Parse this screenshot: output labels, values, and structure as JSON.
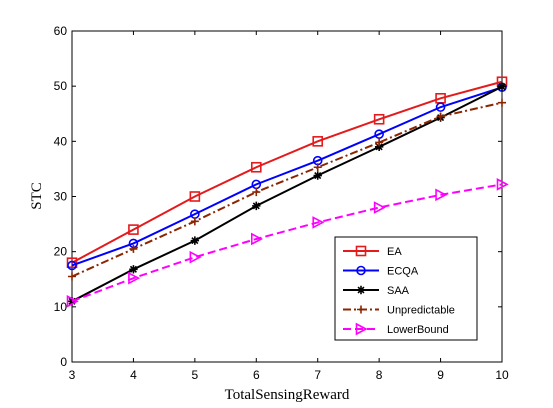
{
  "chart_data": {
    "type": "line",
    "title": "",
    "xlabel": "TotalSensingReward",
    "ylabel": "STC",
    "x": [
      3,
      4,
      5,
      6,
      7,
      8,
      9,
      10
    ],
    "xlim": [
      3,
      10
    ],
    "ylim": [
      0,
      60
    ],
    "xticks": [
      3,
      4,
      5,
      6,
      7,
      8,
      9,
      10
    ],
    "yticks": [
      0,
      10,
      20,
      30,
      40,
      50,
      60
    ],
    "grid": false,
    "legend_position": "bottom-right",
    "series": [
      {
        "name": "EA",
        "color": "#e41a1c",
        "style": "solid",
        "marker": "square",
        "values": [
          18.0,
          24.0,
          30.0,
          35.3,
          40.0,
          44.0,
          47.8,
          50.8
        ]
      },
      {
        "name": "ECQA",
        "color": "#0000ff",
        "style": "solid",
        "marker": "circle",
        "values": [
          17.5,
          21.5,
          26.8,
          32.2,
          36.5,
          41.3,
          46.2,
          49.8
        ]
      },
      {
        "name": "SAA",
        "color": "#000000",
        "style": "solid",
        "marker": "star",
        "values": [
          11.0,
          16.8,
          22.0,
          28.3,
          33.8,
          39.0,
          44.3,
          49.9
        ]
      },
      {
        "name": "Unpredictable",
        "color": "#8b2500",
        "style": "dashdot",
        "marker": "plus",
        "values": [
          15.5,
          20.5,
          25.5,
          30.8,
          35.3,
          39.8,
          44.5,
          47.0
        ]
      },
      {
        "name": "LowerBound",
        "color": "#ff00ff",
        "style": "dashed",
        "marker": "triangle-right",
        "values": [
          11.0,
          15.2,
          19.0,
          22.3,
          25.3,
          28.0,
          30.3,
          32.2
        ]
      }
    ]
  }
}
